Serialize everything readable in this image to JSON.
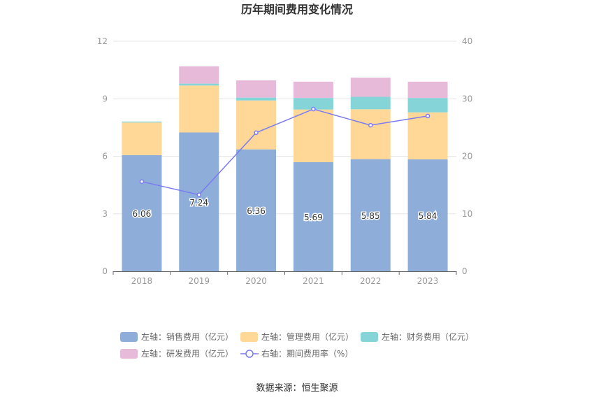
{
  "chart_data": {
    "type": "bar",
    "title": "历年期间费用变化情况",
    "categories": [
      "2018",
      "2019",
      "2020",
      "2021",
      "2022",
      "2023"
    ],
    "stacked": true,
    "series": [
      {
        "name": "左轴：销售费用（亿元）",
        "axis": "left",
        "color": "#8eadd9",
        "values": [
          6.06,
          7.24,
          6.36,
          5.69,
          5.85,
          5.84
        ]
      },
      {
        "name": "左轴：管理费用（亿元）",
        "axis": "left",
        "color": "#ffd898",
        "values": [
          1.7,
          2.45,
          2.55,
          2.75,
          2.6,
          2.45
        ]
      },
      {
        "name": "左轴：财务费用（亿元）",
        "axis": "left",
        "color": "#84d4d8",
        "values": [
          0.05,
          0.1,
          0.15,
          0.6,
          0.65,
          0.75
        ]
      },
      {
        "name": "左轴：研发费用（亿元）",
        "axis": "left",
        "color": "#e8bad9",
        "values": [
          0.0,
          0.9,
          0.9,
          0.85,
          1.0,
          0.85
        ]
      },
      {
        "name": "右轴：期间费用率（%）",
        "axis": "right",
        "type": "line",
        "color": "#7b7bef",
        "values": [
          15.6,
          13.3,
          24.1,
          28.2,
          25.4,
          27.0
        ]
      }
    ],
    "data_labels_series": "左轴：销售费用（亿元）",
    "y_left": {
      "lim": [
        0,
        12
      ],
      "ticks": [
        "0",
        "3",
        "6",
        "9",
        "12"
      ]
    },
    "y_right": {
      "lim": [
        0,
        40
      ],
      "ticks": [
        "0",
        "10",
        "20",
        "30",
        "40"
      ]
    },
    "grid": true,
    "legend_position": "bottom"
  },
  "source_text": "数据来源：恒生聚源"
}
